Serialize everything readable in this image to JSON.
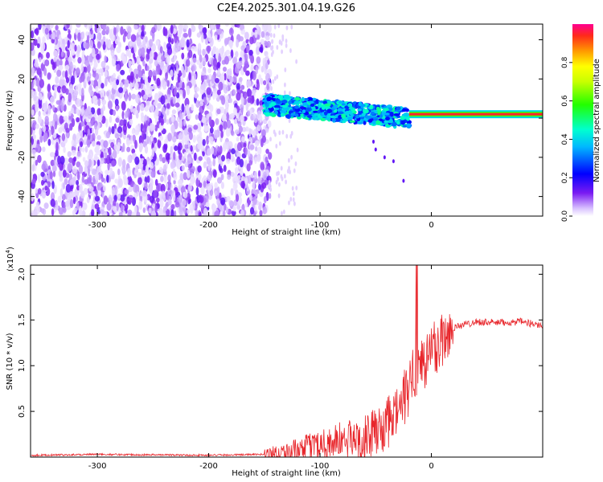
{
  "title": "C2E4.2025.301.04.19.G26",
  "chart_data": [
    {
      "type": "heatmap",
      "name": "spectrogram",
      "xlabel": "Height of straight line (km)",
      "ylabel": "Frequency (Hz)",
      "xlim": [
        -360,
        100
      ],
      "ylim": [
        -50,
        48
      ],
      "xticks": [
        -300,
        -200,
        -100,
        0
      ],
      "yticks": [
        -40,
        -20,
        0,
        20,
        40
      ],
      "colorbar": {
        "label": "Normalized spectral amplitude",
        "range": [
          0,
          1
        ],
        "ticks": [
          0.0,
          0.2,
          0.4,
          0.6,
          0.8
        ],
        "tick_labels": [
          "0.0",
          "0.2",
          "0.4",
          "0.6",
          "0.8"
        ]
      },
      "features": [
        {
          "name": "noise-field",
          "x_range": [
            -360,
            -145
          ],
          "y_range": [
            -50,
            48
          ],
          "amplitude": [
            0.02,
            0.15
          ]
        },
        {
          "name": "signal-band",
          "x_range": [
            -150,
            -20
          ],
          "center_freq": [
            7,
            0
          ],
          "width_hz": 10,
          "amplitude": [
            0.2,
            0.5
          ]
        },
        {
          "name": "tone-line",
          "x_range": [
            -20,
            100
          ],
          "freq": 2,
          "amplitude": 0.95
        }
      ]
    },
    {
      "type": "line",
      "name": "snr",
      "xlabel": "Height of straight line (km)",
      "ylabel": "SNR (10 * v/v)",
      "y_multiplier": "(x10",
      "y_multiplier_exp": "4",
      "y_multiplier_close": ")",
      "xlim": [
        -360,
        100
      ],
      "ylim": [
        0,
        2.1
      ],
      "xticks": [
        -300,
        -200,
        -100,
        0
      ],
      "yticks": [
        0.5,
        1.0,
        1.5,
        2.0
      ],
      "ytick_labels": [
        "0.5",
        "1.0",
        "1.5",
        "2.0"
      ],
      "series": [
        {
          "name": "SNR",
          "color": "#e8262b",
          "x": [
            -360,
            -300,
            -200,
            -150,
            -120,
            -100,
            -80,
            -60,
            -40,
            -30,
            -20,
            -15,
            -10,
            -5,
            0,
            10,
            20,
            40,
            60,
            80,
            100
          ],
          "y": [
            0.02,
            0.03,
            0.02,
            0.03,
            0.06,
            0.15,
            0.18,
            0.2,
            0.35,
            0.5,
            0.75,
            0.9,
            1.0,
            1.05,
            1.15,
            1.3,
            1.42,
            1.48,
            1.47,
            1.48,
            1.44
          ]
        }
      ]
    }
  ]
}
